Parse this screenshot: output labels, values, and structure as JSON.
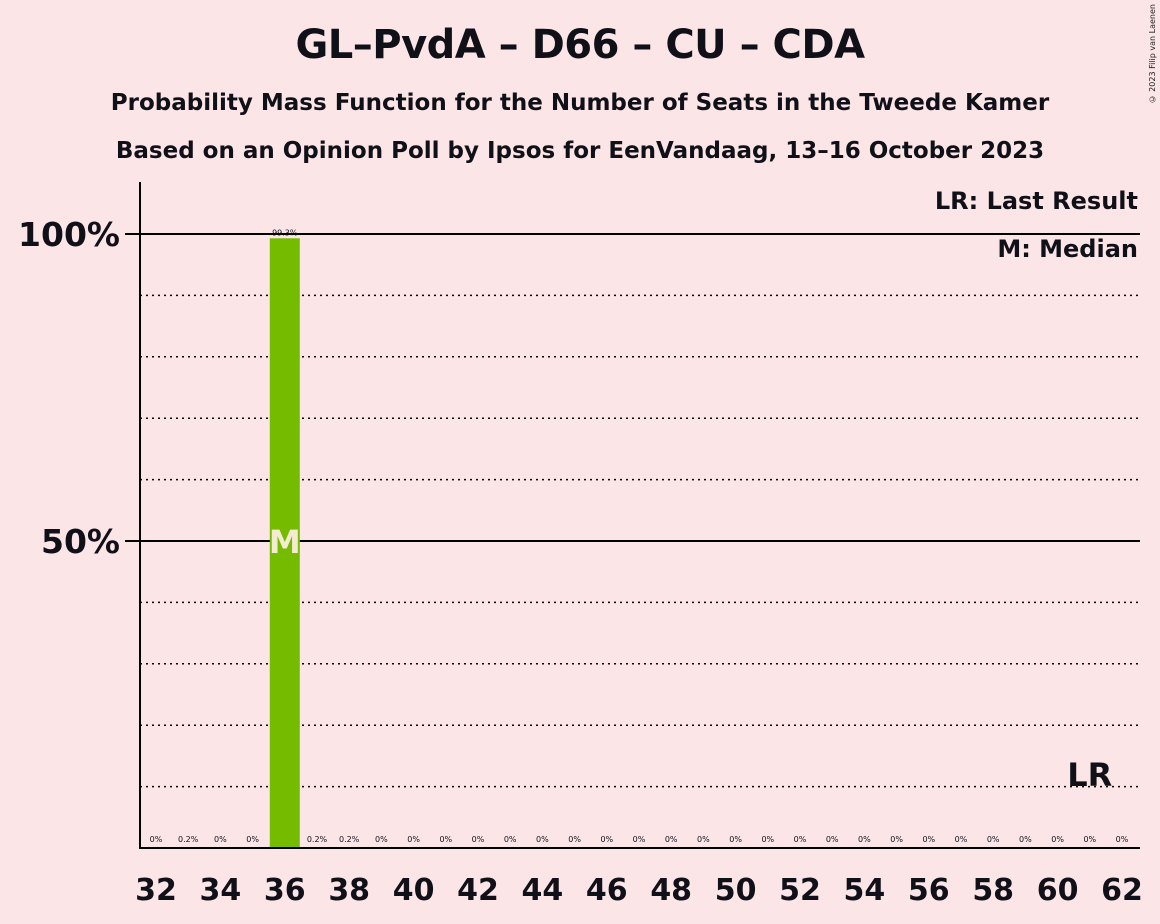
{
  "title": "GL–PvdA – D66 – CU – CDA",
  "subtitle": "Probability Mass Function for the Number of Seats in the Tweede Kamer",
  "source": "Based on an Opinion Poll by Ipsos for EenVandaag, 13–16 October 2023",
  "copyright": "© 2023 Filip van Laenen",
  "colors": {
    "background": "#fbe5e7",
    "bar": "#75bc00",
    "text": "#101018",
    "median_text": "#f4ecd0"
  },
  "chart_data": {
    "type": "bar",
    "x": [
      32,
      33,
      34,
      35,
      36,
      37,
      38,
      39,
      40,
      41,
      42,
      43,
      44,
      45,
      46,
      47,
      48,
      49,
      50,
      51,
      52,
      53,
      54,
      55,
      56,
      57,
      58,
      59,
      60,
      61,
      62
    ],
    "values": [
      0,
      0.2,
      0,
      0,
      99.3,
      0.2,
      0.2,
      0,
      0,
      0,
      0,
      0,
      0,
      0,
      0,
      0,
      0,
      0,
      0,
      0,
      0,
      0,
      0,
      0,
      0,
      0,
      0,
      0,
      0,
      0,
      0
    ],
    "value_labels": [
      "0%",
      "0.2%",
      "0%",
      "0%",
      "99.3%",
      "0.2%",
      "0.2%",
      "0%",
      "0%",
      "0%",
      "0%",
      "0%",
      "0%",
      "0%",
      "0%",
      "0%",
      "0%",
      "0%",
      "0%",
      "0%",
      "0%",
      "0%",
      "0%",
      "0%",
      "0%",
      "0%",
      "0%",
      "0%",
      "0%",
      "0%",
      "0%"
    ],
    "x_tick_labels": [
      "32",
      "34",
      "36",
      "38",
      "40",
      "42",
      "44",
      "46",
      "48",
      "50",
      "52",
      "54",
      "56",
      "58",
      "60",
      "62"
    ],
    "y_tick_labels": [
      "50%",
      "100%"
    ],
    "ylim": [
      0,
      100
    ],
    "grid": "dotted every 10%, solid at 50% and 100%",
    "median": 36,
    "median_marker": "M",
    "last_result": 61,
    "last_result_marker": "LR",
    "legend": [
      "LR: Last Result",
      "M: Median"
    ],
    "legend_position": "top-right"
  }
}
